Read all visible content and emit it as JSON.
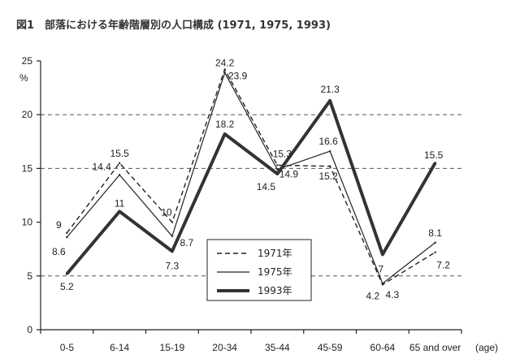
{
  "chart_data": {
    "type": "line",
    "title": "図1　部落における年齢階層別の人口構成 (1971, 1975, 1993)",
    "ylabel": "%",
    "xlabel": "(age)",
    "ylim": [
      0,
      25
    ],
    "yticks": [
      "0",
      "5",
      "10",
      "15",
      "20",
      "25"
    ],
    "categories": [
      "0-5",
      "6-14",
      "15-19",
      "20-34",
      "35-44",
      "45-59",
      "60-64",
      "65 and over"
    ],
    "grid": "dashed horizontal at 5, 15, 20",
    "legend_position": "bottom-center",
    "series": [
      {
        "name": "1971年",
        "style": "dashed",
        "color": "#222222",
        "values": [
          9,
          15.5,
          10,
          24.2,
          15.3,
          15.2,
          4.2,
          7.2
        ],
        "labels": [
          "9",
          "15.5",
          "10",
          "24.2",
          "15.3",
          "15.2",
          "4.2",
          "7.2"
        ]
      },
      {
        "name": "1975年",
        "style": "thin",
        "color": "#222222",
        "values": [
          8.6,
          14.4,
          8.7,
          23.9,
          14.9,
          16.6,
          4.3,
          8.1
        ],
        "labels": [
          "8.6",
          "14.4",
          "8.7",
          "23.9",
          "14.9",
          "16.6",
          "4.3",
          "8.1"
        ]
      },
      {
        "name": "1993年",
        "style": "thick",
        "color": "#333333",
        "values": [
          5.2,
          11,
          7.3,
          18.2,
          14.5,
          21.3,
          7,
          15.5
        ],
        "labels": [
          "5.2",
          "11",
          "7.3",
          "18.2",
          "14.5",
          "21.3",
          "7",
          "15.5"
        ]
      }
    ]
  }
}
